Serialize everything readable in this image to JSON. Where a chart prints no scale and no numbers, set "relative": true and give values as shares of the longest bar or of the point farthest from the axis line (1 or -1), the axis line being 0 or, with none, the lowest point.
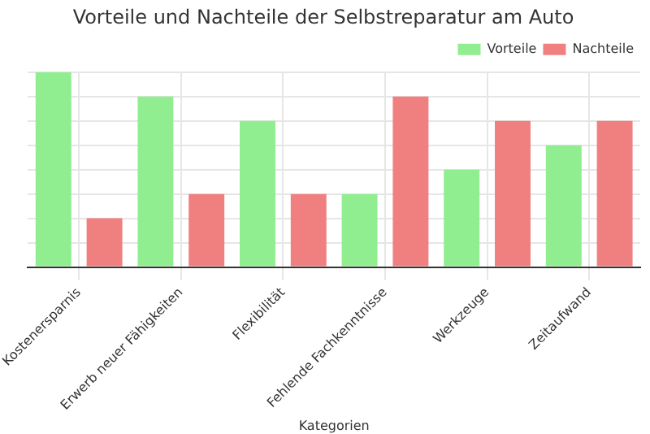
{
  "chart_data": {
    "type": "bar",
    "title": "Vorteile und Nachteile der Selbstreparatur am Auto",
    "xlabel": "Kategorien",
    "categories": [
      "Kostenersparnis",
      "Erwerb neuer Fähigkeiten",
      "Flexibilität",
      "Fehlende Fachkenntnisse",
      "Werkzeuge",
      "Zeitaufwand"
    ],
    "relative": true,
    "series": [
      {
        "name": "Vorteile",
        "color": "#90ee90",
        "values": [
          1,
          0.875,
          0.75,
          0.375,
          0.5,
          0.625
        ]
      },
      {
        "name": "Nachteile",
        "color": "#f08080",
        "values": [
          0.25,
          0.375,
          0.375,
          0.875,
          0.75,
          0.75
        ]
      }
    ],
    "grid": true,
    "legend": "top right"
  }
}
